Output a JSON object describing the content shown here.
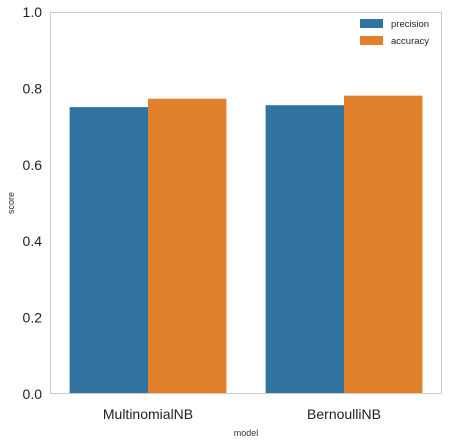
{
  "chart_data": {
    "type": "bar",
    "categories": [
      "MultinomialNB",
      "BernoulliNB"
    ],
    "series": [
      {
        "name": "precision",
        "values": [
          0.751,
          0.756
        ],
        "color": "#3274a1"
      },
      {
        "name": "accuracy",
        "values": [
          0.773,
          0.781
        ],
        "color": "#e1812c"
      }
    ],
    "xlabel": "model",
    "ylabel": "score",
    "ylim": [
      0,
      1
    ],
    "yticks": [
      "0.0",
      "0.2",
      "0.4",
      "0.6",
      "0.8",
      "1.0"
    ],
    "grid": false,
    "legend": {
      "position": "top-right"
    },
    "colors": {
      "axis": "#cccccc",
      "text": "#1f1f1f",
      "background": "#ffffff"
    }
  }
}
